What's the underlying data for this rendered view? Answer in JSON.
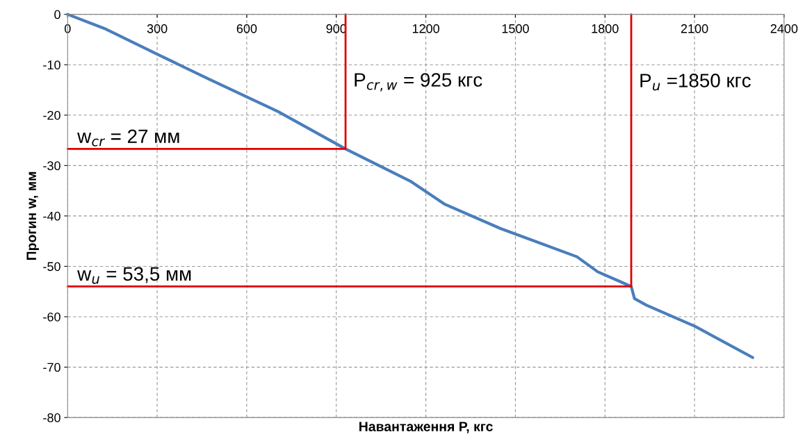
{
  "chart_data": {
    "type": "line",
    "xlabel": "Навантаження P, кгс",
    "ylabel": "Прогин w, мм",
    "xlim": [
      0,
      2400
    ],
    "ylim": [
      -80,
      0
    ],
    "xticks": [
      0,
      300,
      600,
      900,
      1200,
      1500,
      1800,
      2100,
      2400
    ],
    "yticks": [
      -80,
      -70,
      -60,
      -50,
      -40,
      -30,
      -20,
      -10,
      0
    ],
    "grid": true,
    "legend": false,
    "series": [
      {
        "color": "#4a7ebb",
        "x": [
          0,
          123,
          303,
          472,
          705,
          931,
          1148,
          1264,
          1450,
          1706,
          1776,
          1846,
          1888,
          1899,
          1939,
          2102,
          2295
        ],
        "values": [
          0,
          -2.8,
          -8.0,
          -12.8,
          -19.3,
          -26.7,
          -33.1,
          -37.7,
          -42.5,
          -48.1,
          -51.1,
          -52.9,
          -54.0,
          -56.4,
          -57.7,
          -61.9,
          -68.1
        ]
      },
      {
        "color": "#e00000",
        "x": [
          0,
          931,
          931
        ],
        "values": [
          -26.7,
          -26.7,
          0
        ]
      },
      {
        "color": "#e00000",
        "x": [
          0,
          1888,
          1888
        ],
        "values": [
          -54.0,
          -54.0,
          0
        ]
      }
    ],
    "annotations": [
      {
        "text": "P$_{cr,w}$ = 925 кгс",
        "x": 931,
        "y": -15
      },
      {
        "text": "P$_{u}$ =1850 кгс",
        "x": 1888,
        "y": -15
      },
      {
        "text": "w$_{cr}$ = 27 мм",
        "x": 0,
        "y": -26.7
      },
      {
        "text": "w$_{u}$ = 53,5 мм",
        "x": 0,
        "y": -54.0
      }
    ]
  }
}
